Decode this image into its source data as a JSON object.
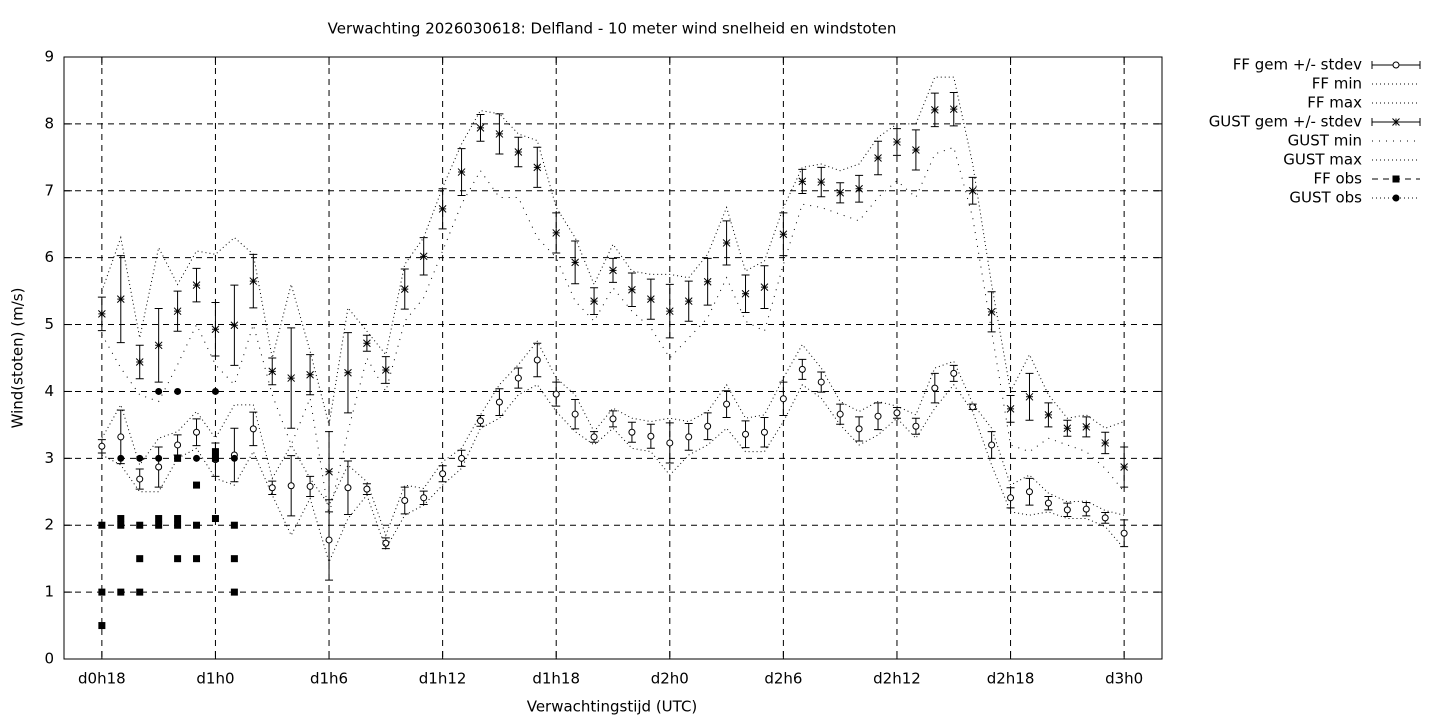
{
  "chart_data": {
    "type": "line",
    "title": "Verwachting 2026030618: Delfland - 10 meter wind snelheid en windstoten",
    "x_label": "Verwachtingstijd (UTC)",
    "y_label": "Wind(stoten) (m/s)",
    "xlim": [
      16,
      74
    ],
    "xticks": [
      {
        "value": 18,
        "label": "d0h18"
      },
      {
        "value": 24,
        "label": "d1h0"
      },
      {
        "value": 30,
        "label": "d1h6"
      },
      {
        "value": 36,
        "label": "d1h12"
      },
      {
        "value": 42,
        "label": "d1h18"
      },
      {
        "value": 48,
        "label": "d2h0"
      },
      {
        "value": 54,
        "label": "d2h6"
      },
      {
        "value": 60,
        "label": "d2h12"
      },
      {
        "value": 66,
        "label": "d2h18"
      },
      {
        "value": 72,
        "label": "d3h0"
      }
    ],
    "ylim": [
      0,
      9
    ],
    "yticks": [
      0,
      1,
      2,
      3,
      4,
      5,
      6,
      7,
      8,
      9
    ],
    "grid": true,
    "legend": "outside-top-right",
    "x": [
      18,
      19,
      20,
      21,
      22,
      23,
      24,
      25,
      26,
      27,
      28,
      29,
      30,
      31,
      32,
      33,
      34,
      35,
      36,
      37,
      38,
      39,
      40,
      41,
      42,
      43,
      44,
      45,
      46,
      47,
      48,
      49,
      50,
      51,
      52,
      53,
      54,
      55,
      56,
      57,
      58,
      59,
      60,
      61,
      62,
      63,
      64,
      65,
      66,
      67,
      68,
      69,
      70,
      71,
      72
    ],
    "series": [
      {
        "name": "FF gem +/- stdev",
        "style": "errorbars",
        "marker": "circle",
        "color": "#000000",
        "values": [
          3.18,
          3.32,
          2.69,
          2.87,
          3.2,
          3.39,
          2.98,
          3.05,
          3.44,
          2.56,
          2.59,
          2.58,
          1.78,
          2.56,
          2.54,
          1.73,
          2.37,
          2.41,
          2.77,
          3.0,
          3.56,
          3.84,
          4.2,
          4.47,
          3.96,
          3.66,
          3.32,
          3.59,
          3.39,
          3.33,
          3.23,
          3.32,
          3.48,
          3.81,
          3.36,
          3.39,
          3.89,
          4.33,
          4.14,
          3.66,
          3.44,
          3.63,
          3.68,
          3.48,
          4.05,
          4.27,
          3.77,
          3.2,
          2.41,
          2.5,
          2.33,
          2.23,
          2.24,
          2.11,
          1.88
        ],
        "errors": [
          0.1,
          0.4,
          0.15,
          0.3,
          0.15,
          0.2,
          0.25,
          0.4,
          0.25,
          0.1,
          0.45,
          0.15,
          0.6,
          0.4,
          0.08,
          0.08,
          0.2,
          0.1,
          0.12,
          0.12,
          0.08,
          0.2,
          0.15,
          0.25,
          0.18,
          0.22,
          0.08,
          0.12,
          0.15,
          0.18,
          0.3,
          0.2,
          0.2,
          0.2,
          0.2,
          0.22,
          0.25,
          0.15,
          0.15,
          0.15,
          0.18,
          0.2,
          0.08,
          0.12,
          0.22,
          0.12,
          0.04,
          0.2,
          0.15,
          0.2,
          0.1,
          0.1,
          0.1,
          0.08,
          0.2
        ]
      },
      {
        "name": "FF min",
        "style": "dotted",
        "color": "#000000",
        "values": [
          3.05,
          2.9,
          2.5,
          2.5,
          3.0,
          3.15,
          2.7,
          2.6,
          3.1,
          2.45,
          1.85,
          2.4,
          1.45,
          2.1,
          2.45,
          1.65,
          2.15,
          2.3,
          2.6,
          2.85,
          3.45,
          3.6,
          3.95,
          4.1,
          3.7,
          3.4,
          3.2,
          3.45,
          3.15,
          3.1,
          2.75,
          3.05,
          3.2,
          3.45,
          3.1,
          3.1,
          3.55,
          4.1,
          3.9,
          3.5,
          3.2,
          3.35,
          3.6,
          3.3,
          3.75,
          4.1,
          3.7,
          2.9,
          2.2,
          2.15,
          2.2,
          2.1,
          2.1,
          1.98,
          1.65
        ]
      },
      {
        "name": "FF max",
        "style": "dotted",
        "color": "#000000",
        "values": [
          3.3,
          3.8,
          2.9,
          3.3,
          3.4,
          3.7,
          3.3,
          3.8,
          3.8,
          2.7,
          3.2,
          2.7,
          2.3,
          2.9,
          2.65,
          1.85,
          2.6,
          2.55,
          2.95,
          3.15,
          3.65,
          4.1,
          4.4,
          4.75,
          4.2,
          3.95,
          3.4,
          3.75,
          3.6,
          3.55,
          3.6,
          3.55,
          3.7,
          4.1,
          3.6,
          3.65,
          4.2,
          4.7,
          4.35,
          3.85,
          3.7,
          3.85,
          3.78,
          3.65,
          4.35,
          4.45,
          3.82,
          3.45,
          2.6,
          2.75,
          2.48,
          2.35,
          2.36,
          2.22,
          2.15
        ]
      },
      {
        "name": "GUST gem +/- stdev",
        "style": "errorbars",
        "marker": "star",
        "color": "#000000",
        "values": [
          5.16,
          5.38,
          4.44,
          4.69,
          5.2,
          5.59,
          4.93,
          4.99,
          5.65,
          4.3,
          4.2,
          4.25,
          2.8,
          4.28,
          4.72,
          4.32,
          5.53,
          6.02,
          6.73,
          7.28,
          7.94,
          7.85,
          7.58,
          7.35,
          6.37,
          5.93,
          5.35,
          5.81,
          5.52,
          5.38,
          5.2,
          5.35,
          5.64,
          6.22,
          5.46,
          5.56,
          6.35,
          7.14,
          7.13,
          6.97,
          7.03,
          7.49,
          7.73,
          7.61,
          8.21,
          8.22,
          7.0,
          5.19,
          3.74,
          3.92,
          3.65,
          3.45,
          3.47,
          3.23,
          2.87
        ],
        "errors": [
          0.25,
          0.65,
          0.25,
          0.55,
          0.3,
          0.25,
          0.4,
          0.6,
          0.4,
          0.2,
          0.75,
          0.3,
          0.6,
          0.6,
          0.12,
          0.2,
          0.3,
          0.28,
          0.3,
          0.35,
          0.2,
          0.3,
          0.22,
          0.3,
          0.3,
          0.32,
          0.2,
          0.18,
          0.25,
          0.3,
          0.4,
          0.3,
          0.35,
          0.33,
          0.28,
          0.32,
          0.32,
          0.18,
          0.22,
          0.15,
          0.2,
          0.25,
          0.2,
          0.3,
          0.25,
          0.25,
          0.2,
          0.3,
          0.2,
          0.35,
          0.18,
          0.12,
          0.15,
          0.16,
          0.3
        ]
      },
      {
        "name": "GUST min",
        "style": "sparse-dotted",
        "color": "#000000",
        "values": [
          4.85,
          4.35,
          3.95,
          3.85,
          4.4,
          5.0,
          4.4,
          4.1,
          5.0,
          3.95,
          3.2,
          3.9,
          2.15,
          3.4,
          4.5,
          4.0,
          5.05,
          5.4,
          6.1,
          6.8,
          7.3,
          6.9,
          6.9,
          6.3,
          6.0,
          5.35,
          5.05,
          5.55,
          5.2,
          4.95,
          4.5,
          4.8,
          5.1,
          5.7,
          5.05,
          4.9,
          5.9,
          6.8,
          6.75,
          6.65,
          6.55,
          6.9,
          7.15,
          6.9,
          7.55,
          7.65,
          6.6,
          4.9,
          3.2,
          3.1,
          3.3,
          3.2,
          3.1,
          2.85,
          2.5
        ]
      },
      {
        "name": "GUST max",
        "style": "dotted",
        "color": "#000000",
        "values": [
          5.5,
          6.3,
          4.8,
          6.15,
          5.6,
          6.1,
          6.05,
          6.3,
          6.05,
          4.5,
          5.6,
          4.6,
          3.5,
          5.25,
          4.9,
          4.55,
          5.9,
          6.3,
          7.05,
          7.7,
          8.2,
          8.15,
          7.85,
          7.75,
          6.75,
          6.3,
          5.6,
          6.2,
          5.8,
          5.75,
          5.75,
          5.7,
          6.05,
          6.75,
          5.8,
          5.95,
          6.75,
          7.35,
          7.4,
          7.3,
          7.4,
          7.8,
          8.0,
          8.0,
          8.7,
          8.7,
          7.4,
          5.6,
          4.0,
          4.55,
          3.95,
          3.6,
          3.65,
          3.45,
          3.55
        ]
      },
      {
        "name": "FF obs",
        "style": "points",
        "marker": "square",
        "color": "#000000",
        "x": [
          18,
          18,
          18,
          19,
          19,
          19,
          20,
          20,
          20,
          21,
          21,
          22,
          22,
          22,
          22,
          23,
          23,
          23,
          24,
          24,
          24,
          25,
          25,
          25
        ],
        "values": [
          0.5,
          1,
          2,
          1,
          2,
          2.1,
          1,
          1.5,
          2,
          2,
          2.1,
          1.5,
          2,
          2.1,
          3,
          1.5,
          2,
          2.6,
          2.1,
          3,
          3.1,
          1,
          1.5,
          2
        ]
      },
      {
        "name": "GUST obs",
        "style": "points",
        "marker": "dot",
        "color": "#000000",
        "x": [
          19,
          20,
          21,
          21,
          22,
          23,
          24,
          24,
          25
        ],
        "values": [
          3,
          3,
          3,
          4,
          4,
          3,
          3,
          4,
          3
        ]
      }
    ]
  }
}
